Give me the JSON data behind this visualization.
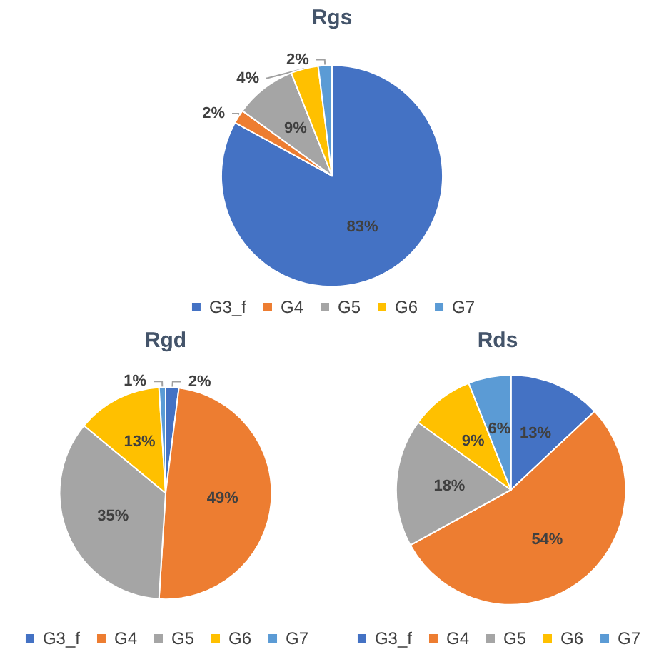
{
  "chart_data": [
    {
      "type": "pie",
      "title": "Rgs",
      "categories": [
        "G3_f",
        "G4",
        "G5",
        "G6",
        "G7"
      ],
      "values": [
        83,
        2,
        9,
        4,
        2
      ],
      "colors": [
        "#4472c4",
        "#ed7d31",
        "#a5a5a5",
        "#ffc000",
        "#5b9bd5"
      ],
      "value_labels": [
        "83%",
        "2%",
        "9%",
        "4%",
        "2%"
      ],
      "legend": "bottom"
    },
    {
      "type": "pie",
      "title": "Rgd",
      "categories": [
        "G3_f",
        "G4",
        "G5",
        "G6",
        "G7"
      ],
      "values": [
        2,
        49,
        35,
        13,
        1
      ],
      "colors": [
        "#4472c4",
        "#ed7d31",
        "#a5a5a5",
        "#ffc000",
        "#5b9bd5"
      ],
      "value_labels": [
        "2%",
        "49%",
        "35%",
        "13%",
        "1%"
      ],
      "legend": "bottom"
    },
    {
      "type": "pie",
      "title": "Rds",
      "categories": [
        "G3_f",
        "G4",
        "G5",
        "G6",
        "G7"
      ],
      "values": [
        13,
        54,
        18,
        9,
        6
      ],
      "colors": [
        "#4472c4",
        "#ed7d31",
        "#a5a5a5",
        "#ffc000",
        "#5b9bd5"
      ],
      "value_labels": [
        "13%",
        "54%",
        "18%",
        "9%",
        "6%"
      ],
      "legend": "bottom"
    }
  ]
}
